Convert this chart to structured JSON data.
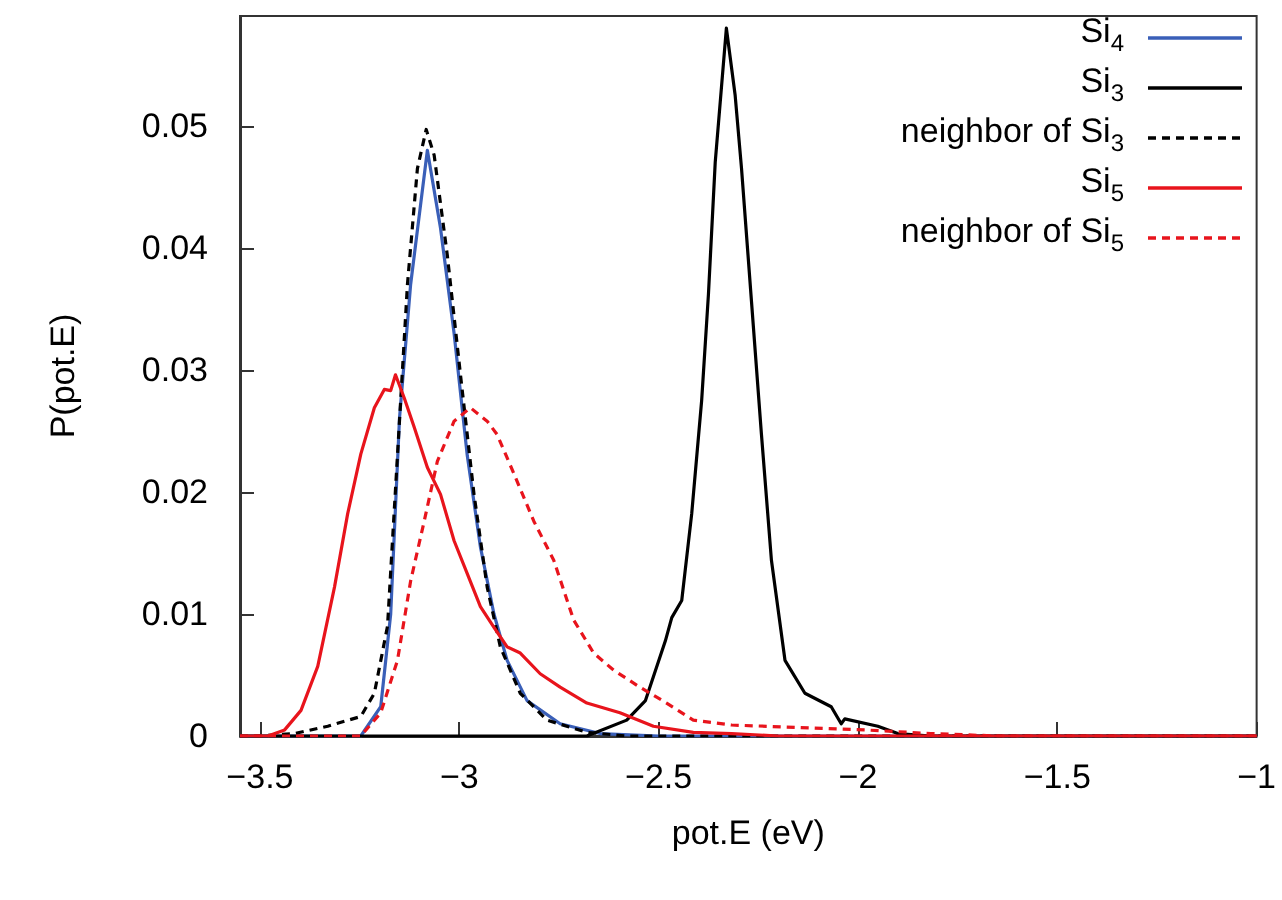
{
  "chart_data": {
    "type": "line",
    "xlabel": "pot.E (eV)",
    "ylabel": "P(pot.E)",
    "xlim": [
      -3.55,
      -1
    ],
    "xticks": [
      -3.5,
      -3,
      -2.5,
      -2,
      -1.5,
      -1
    ],
    "ylim": [
      0,
      0.059
    ],
    "yticks": [
      0,
      0.01,
      0.02,
      0.03,
      0.04,
      0.05
    ],
    "grid": false,
    "legend": "top right",
    "marker": "none",
    "series": [
      {
        "name": "Si$_{4}$",
        "color": "#3a5fb8",
        "line_style": "solid",
        "x": [
          -3.55,
          -3.247,
          -3.197,
          -3.172,
          -3.15,
          -3.122,
          -3.08,
          -3.047,
          -3.013,
          -2.98,
          -2.947,
          -2.913,
          -2.88,
          -2.83,
          -2.747,
          -2.647,
          -2.5,
          -1
        ],
        "values": [
          0,
          0,
          0.0024,
          0.01,
          0.026,
          0.037,
          0.048,
          0.0416,
          0.033,
          0.023,
          0.0155,
          0.01,
          0.0062,
          0.0029,
          0.001,
          0.0002,
          0,
          0
        ]
      },
      {
        "name": "Si$_{3}$",
        "color": "#000000",
        "line_style": "solid",
        "x": [
          -3.55,
          -2.68,
          -2.58,
          -2.533,
          -2.483,
          -2.467,
          -2.442,
          -2.417,
          -2.392,
          -2.375,
          -2.358,
          -2.33,
          -2.308,
          -2.292,
          -2.267,
          -2.242,
          -2.217,
          -2.183,
          -2.133,
          -2.067,
          -2.042,
          -2.033,
          -1.95,
          -1.9,
          -1.817,
          -1
        ],
        "values": [
          0,
          0,
          0.0013,
          0.0029,
          0.0078,
          0.0097,
          0.0111,
          0.0182,
          0.0275,
          0.0362,
          0.047,
          0.058,
          0.0525,
          0.0465,
          0.0356,
          0.0247,
          0.0144,
          0.0062,
          0.0035,
          0.0024,
          0.001,
          0.0014,
          0.0008,
          0.0002,
          0,
          0
        ]
      },
      {
        "name": "neighbor of Si$_{3}$",
        "color": "#000000",
        "line_style": "dashed",
        "x": [
          -3.55,
          -3.5,
          -3.413,
          -3.33,
          -3.247,
          -3.213,
          -3.18,
          -3.155,
          -3.13,
          -3.105,
          -3.083,
          -3.063,
          -3.03,
          -2.997,
          -2.963,
          -2.93,
          -2.897,
          -2.847,
          -2.78,
          -2.68,
          -2.58,
          -1
        ],
        "values": [
          0,
          0,
          0.0002,
          0.0008,
          0.0016,
          0.0035,
          0.009,
          0.023,
          0.037,
          0.0465,
          0.0497,
          0.0476,
          0.0394,
          0.0296,
          0.0198,
          0.0122,
          0.0073,
          0.0035,
          0.0013,
          0.0003,
          0,
          0
        ]
      },
      {
        "name": "Si$_{5}$",
        "color": "#e8141c",
        "line_style": "solid",
        "x": [
          -3.55,
          -3.48,
          -3.438,
          -3.397,
          -3.355,
          -3.313,
          -3.28,
          -3.247,
          -3.213,
          -3.188,
          -3.172,
          -3.16,
          -3.138,
          -3.113,
          -3.08,
          -3.047,
          -3.013,
          -2.98,
          -2.947,
          -2.913,
          -2.88,
          -2.847,
          -2.797,
          -2.747,
          -2.68,
          -2.597,
          -2.513,
          -2.413,
          -2.317,
          -2.2,
          -1
        ],
        "values": [
          0,
          0,
          0.0005,
          0.0021,
          0.0057,
          0.0122,
          0.0182,
          0.0231,
          0.0269,
          0.0284,
          0.0283,
          0.0296,
          0.0277,
          0.0253,
          0.022,
          0.0198,
          0.016,
          0.0133,
          0.0106,
          0.0089,
          0.0073,
          0.0068,
          0.0051,
          0.004,
          0.0027,
          0.0019,
          0.0008,
          0.0003,
          0.0002,
          0,
          0
        ]
      },
      {
        "name": "neighbor of Si$_{5}$",
        "color": "#e8141c",
        "line_style": "dashed",
        "x": [
          -3.55,
          -3.247,
          -3.197,
          -3.155,
          -3.122,
          -3.088,
          -3.055,
          -3.013,
          -2.972,
          -2.93,
          -2.905,
          -2.863,
          -2.813,
          -2.763,
          -2.713,
          -2.663,
          -2.613,
          -2.547,
          -2.48,
          -2.413,
          -2.317,
          -2.15,
          -1.983,
          -1.817,
          -1.65,
          -1
        ],
        "values": [
          0,
          0,
          0.0019,
          0.0062,
          0.0127,
          0.0176,
          0.0225,
          0.0258,
          0.0269,
          0.0258,
          0.0247,
          0.0215,
          0.0176,
          0.0144,
          0.0095,
          0.0068,
          0.0054,
          0.004,
          0.0027,
          0.0013,
          0.0009,
          0.0007,
          0.0005,
          0.0002,
          0,
          0
        ]
      }
    ]
  }
}
